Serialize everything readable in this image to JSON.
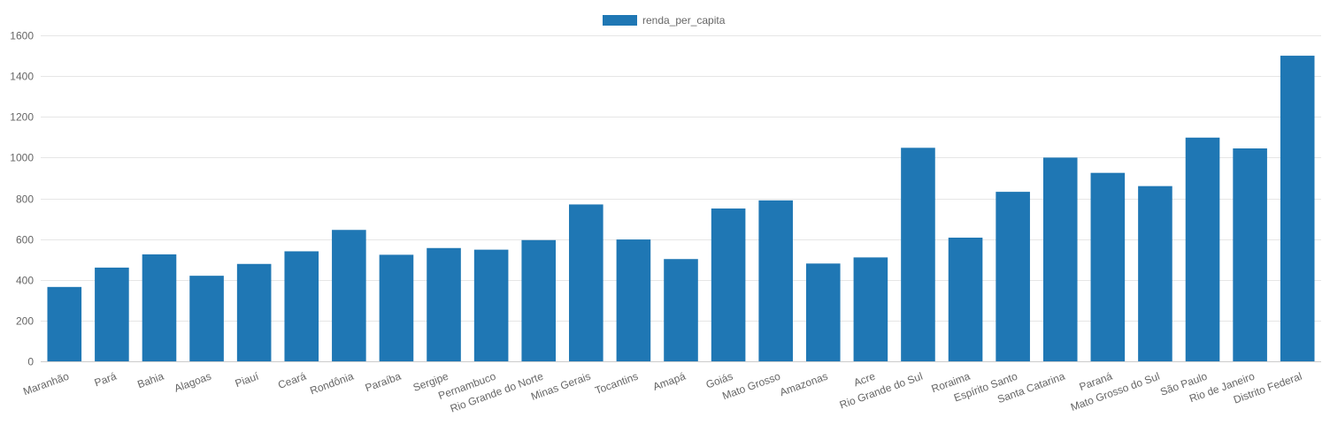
{
  "chart_data": {
    "type": "bar",
    "legend_position": "top",
    "grid": true,
    "ylim": [
      0,
      1600
    ],
    "y_ticks": [
      0,
      200,
      400,
      600,
      800,
      1000,
      1200,
      1400,
      1600
    ],
    "categories": [
      "Maranhão",
      "Pará",
      "Bahia",
      "Alagoas",
      "Piauí",
      "Ceará",
      "Rondônia",
      "Paraíba",
      "Sergipe",
      "Pernambuco",
      "Rio Grande do Norte",
      "Minas Gerais",
      "Tocantins",
      "Amapá",
      "Goiás",
      "Mato Grosso",
      "Amazonas",
      "Acre",
      "Rio Grande do Sul",
      "Roraima",
      "Espírito Santo",
      "Santa Catarina",
      "Paraná",
      "Mato Grosso do Sul",
      "São Paulo",
      "Rio de Janeiro",
      "Distrito Federal"
    ],
    "series": [
      {
        "name": "renda_per_capita",
        "color": "#1f77b4",
        "values": [
          365,
          460,
          525,
          420,
          478,
          540,
          645,
          523,
          556,
          548,
          595,
          770,
          598,
          502,
          750,
          790,
          480,
          510,
          1048,
          607,
          832,
          1000,
          925,
          860,
          1098,
          1045,
          1500
        ]
      }
    ]
  }
}
